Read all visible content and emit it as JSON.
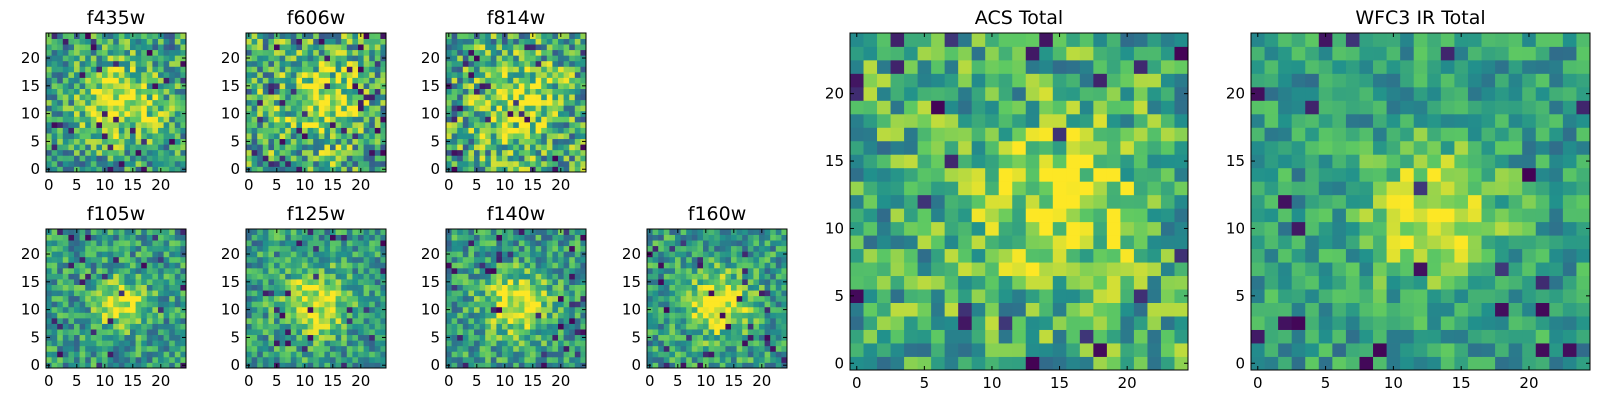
{
  "figure": {
    "colormap": "viridis",
    "colormap_stops": [
      "#440154",
      "#3b528b",
      "#21918c",
      "#5ec962",
      "#fde725"
    ]
  },
  "chart_data": [
    {
      "type": "heatmap",
      "id": "f435w",
      "title": "f435w",
      "grid_size": 25,
      "xlim": [
        0,
        24
      ],
      "ylim": [
        0,
        24
      ],
      "xticks": [
        0,
        5,
        10,
        15,
        20
      ],
      "yticks": [
        0,
        5,
        10,
        15,
        20
      ],
      "tick_labels_x": [
        "0",
        "5",
        "10",
        "15",
        "20"
      ],
      "tick_labels_y": [
        "0",
        "5",
        "10",
        "15",
        "20"
      ],
      "value_range": [
        0,
        1
      ],
      "center": [
        13,
        12
      ],
      "peak": 0.95,
      "base": 0.55,
      "width": 5,
      "noise": 0.3,
      "dark_fraction": 0.04,
      "seed": 11
    },
    {
      "type": "heatmap",
      "id": "f606w",
      "title": "f606w",
      "grid_size": 25,
      "xlim": [
        0,
        24
      ],
      "ylim": [
        0,
        24
      ],
      "xticks": [
        0,
        5,
        10,
        15,
        20
      ],
      "yticks": [
        0,
        5,
        10,
        15,
        20
      ],
      "tick_labels_x": [
        "0",
        "5",
        "10",
        "15",
        "20"
      ],
      "tick_labels_y": [
        "0",
        "5",
        "10",
        "15",
        "20"
      ],
      "value_range": [
        0,
        1
      ],
      "center": [
        13,
        12
      ],
      "peak": 0.95,
      "base": 0.6,
      "width": 5,
      "noise": 0.35,
      "dark_fraction": 0.06,
      "seed": 23
    },
    {
      "type": "heatmap",
      "id": "f814w",
      "title": "f814w",
      "grid_size": 25,
      "xlim": [
        0,
        24
      ],
      "ylim": [
        0,
        24
      ],
      "xticks": [
        0,
        5,
        10,
        15,
        20
      ],
      "yticks": [
        0,
        5,
        10,
        15,
        20
      ],
      "tick_labels_x": [
        "0",
        "5",
        "10",
        "15",
        "20"
      ],
      "tick_labels_y": [
        "0",
        "5",
        "10",
        "15",
        "20"
      ],
      "value_range": [
        0,
        1
      ],
      "center": [
        12,
        12
      ],
      "peak": 0.9,
      "base": 0.6,
      "width": 5,
      "noise": 0.35,
      "dark_fraction": 0.05,
      "seed": 37
    },
    {
      "type": "heatmap",
      "id": "f105w",
      "title": "f105w",
      "grid_size": 25,
      "xlim": [
        0,
        24
      ],
      "ylim": [
        0,
        24
      ],
      "xticks": [
        0,
        5,
        10,
        15,
        20
      ],
      "yticks": [
        0,
        5,
        10,
        15,
        20
      ],
      "tick_labels_x": [
        "0",
        "5",
        "10",
        "15",
        "20"
      ],
      "tick_labels_y": [
        "0",
        "5",
        "10",
        "15",
        "20"
      ],
      "value_range": [
        0,
        1
      ],
      "center": [
        13,
        11
      ],
      "peak": 1.0,
      "base": 0.55,
      "width": 3,
      "noise": 0.25,
      "dark_fraction": 0.05,
      "seed": 41
    },
    {
      "type": "heatmap",
      "id": "f125w",
      "title": "f125w",
      "grid_size": 25,
      "xlim": [
        0,
        24
      ],
      "ylim": [
        0,
        24
      ],
      "xticks": [
        0,
        5,
        10,
        15,
        20
      ],
      "yticks": [
        0,
        5,
        10,
        15,
        20
      ],
      "tick_labels_x": [
        "0",
        "5",
        "10",
        "15",
        "20"
      ],
      "tick_labels_y": [
        "0",
        "5",
        "10",
        "15",
        "20"
      ],
      "value_range": [
        0,
        1
      ],
      "center": [
        12,
        11
      ],
      "peak": 1.0,
      "base": 0.55,
      "width": 4,
      "noise": 0.25,
      "dark_fraction": 0.05,
      "seed": 53
    },
    {
      "type": "heatmap",
      "id": "f140w",
      "title": "f140w",
      "grid_size": 25,
      "xlim": [
        0,
        24
      ],
      "ylim": [
        0,
        24
      ],
      "xticks": [
        0,
        5,
        10,
        15,
        20
      ],
      "yticks": [
        0,
        5,
        10,
        15,
        20
      ],
      "tick_labels_x": [
        "0",
        "5",
        "10",
        "15",
        "20"
      ],
      "tick_labels_y": [
        "0",
        "5",
        "10",
        "15",
        "20"
      ],
      "value_range": [
        0,
        1
      ],
      "center": [
        12,
        11
      ],
      "peak": 1.0,
      "base": 0.55,
      "width": 4,
      "noise": 0.25,
      "dark_fraction": 0.05,
      "seed": 67
    },
    {
      "type": "heatmap",
      "id": "f160w",
      "title": "f160w",
      "grid_size": 25,
      "xlim": [
        0,
        24
      ],
      "ylim": [
        0,
        24
      ],
      "xticks": [
        0,
        5,
        10,
        15,
        20
      ],
      "yticks": [
        0,
        5,
        10,
        15,
        20
      ],
      "tick_labels_x": [
        "0",
        "5",
        "10",
        "15",
        "20"
      ],
      "tick_labels_y": [
        "0",
        "5",
        "10",
        "15",
        "20"
      ],
      "value_range": [
        0,
        1
      ],
      "center": [
        12,
        11
      ],
      "peak": 1.0,
      "base": 0.55,
      "width": 4,
      "noise": 0.25,
      "dark_fraction": 0.06,
      "seed": 79
    },
    {
      "type": "heatmap",
      "id": "acs-total",
      "title": "ACS Total",
      "grid_size": 25,
      "xlim": [
        0,
        24
      ],
      "ylim": [
        0,
        24
      ],
      "xticks": [
        0,
        5,
        10,
        15,
        20
      ],
      "yticks": [
        0,
        5,
        10,
        15,
        20
      ],
      "tick_labels_x": [
        "0",
        "5",
        "10",
        "15",
        "20"
      ],
      "tick_labels_y": [
        "0",
        "5",
        "10",
        "15",
        "20"
      ],
      "value_range": [
        0,
        1
      ],
      "center": [
        15,
        12
      ],
      "peak": 0.95,
      "base": 0.62,
      "width": 4,
      "noise": 0.28,
      "dark_fraction": 0.04,
      "seed": 97
    },
    {
      "type": "heatmap",
      "id": "wfc3-ir-total",
      "title": "WFC3 IR Total",
      "grid_size": 25,
      "xlim": [
        0,
        24
      ],
      "ylim": [
        0,
        24
      ],
      "xticks": [
        0,
        5,
        10,
        15,
        20
      ],
      "yticks": [
        0,
        5,
        10,
        15,
        20
      ],
      "tick_labels_x": [
        "0",
        "5",
        "10",
        "15",
        "20"
      ],
      "tick_labels_y": [
        "0",
        "5",
        "10",
        "15",
        "20"
      ],
      "value_range": [
        0,
        1
      ],
      "center": [
        13,
        11
      ],
      "peak": 1.0,
      "base": 0.55,
      "width": 3.5,
      "noise": 0.2,
      "dark_fraction": 0.04,
      "seed": 113
    }
  ]
}
